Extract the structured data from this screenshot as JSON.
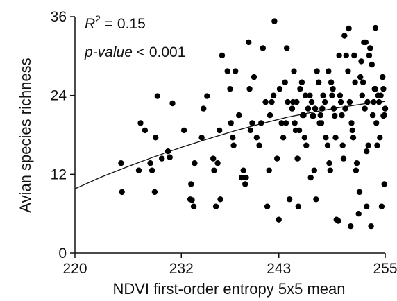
{
  "chart_data": {
    "type": "scatter",
    "title": "",
    "xlabel": "NDVI first-order entropy 5x5 mean",
    "ylabel": "Avian species richness",
    "xlim": [
      220,
      255
    ],
    "ylim": [
      0,
      36
    ],
    "xticks": [
      "220",
      "232",
      "243",
      "255"
    ],
    "yticks": [
      "0",
      "12",
      "24",
      "36"
    ],
    "annotations": {
      "r2_label": "R",
      "r2_sup": "2",
      "r2_value": " = 0.15",
      "p_label": "p-value",
      "p_value": " < 0.001"
    },
    "fit_curve": {
      "x": [
        220,
        223,
        226,
        229,
        232,
        235,
        238,
        241,
        244,
        247,
        250,
        253,
        255
      ],
      "y": [
        9.8,
        11.6,
        13.2,
        14.7,
        16.1,
        17.4,
        18.6,
        19.7,
        20.7,
        21.5,
        22.2,
        22.8,
        23.1
      ]
    },
    "points": [
      [
        225.2,
        13.7
      ],
      [
        225.3,
        9.3
      ],
      [
        227.4,
        19.8
      ],
      [
        227.2,
        12.6
      ],
      [
        227.9,
        18.7
      ],
      [
        228.5,
        13.7
      ],
      [
        228.7,
        12.6
      ],
      [
        229.0,
        9.3
      ],
      [
        229.1,
        17.6
      ],
      [
        229.3,
        23.9
      ],
      [
        229.8,
        14.4
      ],
      [
        230.5,
        15.5
      ],
      [
        230.7,
        14.6
      ],
      [
        231.0,
        22.8
      ],
      [
        232.3,
        18.7
      ],
      [
        233.1,
        10.5
      ],
      [
        233.0,
        8.2
      ],
      [
        233.2,
        8.1
      ],
      [
        233.4,
        7.1
      ],
      [
        233.5,
        13.7
      ],
      [
        234.5,
        22.0
      ],
      [
        234.9,
        23.9
      ],
      [
        234.3,
        17.6
      ],
      [
        235.6,
        14.4
      ],
      [
        235.7,
        12.6
      ],
      [
        235.9,
        7.1
      ],
      [
        236.1,
        13.7
      ],
      [
        236.3,
        18.7
      ],
      [
        236.4,
        8.2
      ],
      [
        236.6,
        30.1
      ],
      [
        237.2,
        27.7
      ],
      [
        237.5,
        25.0
      ],
      [
        237.6,
        19.8
      ],
      [
        237.8,
        17.6
      ],
      [
        237.9,
        16.4
      ],
      [
        238.1,
        27.7
      ],
      [
        238.5,
        21.0
      ],
      [
        238.8,
        11.5
      ],
      [
        239.0,
        12.6
      ],
      [
        239.2,
        10.5
      ],
      [
        239.3,
        11.5
      ],
      [
        239.6,
        32.1
      ],
      [
        239.7,
        25.0
      ],
      [
        239.8,
        18.7
      ],
      [
        240.0,
        19.8
      ],
      [
        240.2,
        26.8
      ],
      [
        240.5,
        17.6
      ],
      [
        240.8,
        16.4
      ],
      [
        241.0,
        19.8
      ],
      [
        241.2,
        31.2
      ],
      [
        241.5,
        23.0
      ],
      [
        241.7,
        7.1
      ],
      [
        241.9,
        12.6
      ],
      [
        242.0,
        21.0
      ],
      [
        242.2,
        23.0
      ],
      [
        242.4,
        24.0
      ],
      [
        242.5,
        35.3
      ],
      [
        242.8,
        14.4
      ],
      [
        243.0,
        5.1
      ],
      [
        243.1,
        25.0
      ],
      [
        243.3,
        19.8
      ],
      [
        243.5,
        17.6
      ],
      [
        243.7,
        26.0
      ],
      [
        243.9,
        31.2
      ],
      [
        244.0,
        23.0
      ],
      [
        244.2,
        8.2
      ],
      [
        244.5,
        22.0
      ],
      [
        244.7,
        27.7
      ],
      [
        244.8,
        19.8
      ],
      [
        244.9,
        18.7
      ],
      [
        245.0,
        23.0
      ],
      [
        245.1,
        14.4
      ],
      [
        245.2,
        7.1
      ],
      [
        245.3,
        18.7
      ],
      [
        245.4,
        25.0
      ],
      [
        245.6,
        26.0
      ],
      [
        245.8,
        21.0
      ],
      [
        245.9,
        17.6
      ],
      [
        246.1,
        16.4
      ],
      [
        246.3,
        22.0
      ],
      [
        246.5,
        24.0
      ],
      [
        246.6,
        11.5
      ],
      [
        246.7,
        23.0
      ],
      [
        246.8,
        20.9
      ],
      [
        247.0,
        12.6
      ],
      [
        247.1,
        22.0
      ],
      [
        247.2,
        8.2
      ],
      [
        247.3,
        27.7
      ],
      [
        247.5,
        26.0
      ],
      [
        247.7,
        21.0
      ],
      [
        247.8,
        19.8
      ],
      [
        247.9,
        22.0
      ],
      [
        248.0,
        24.0
      ],
      [
        248.2,
        23.0
      ],
      [
        248.3,
        17.6
      ],
      [
        248.5,
        16.4
      ],
      [
        248.6,
        27.7
      ],
      [
        248.7,
        13.7
      ],
      [
        248.8,
        12.6
      ],
      [
        249.0,
        24.0
      ],
      [
        249.1,
        25.0
      ],
      [
        249.2,
        22.0
      ],
      [
        249.3,
        20.9
      ],
      [
        249.4,
        17.6
      ],
      [
        249.5,
        5.1
      ],
      [
        249.7,
        4.9
      ],
      [
        249.8,
        30.1
      ],
      [
        250.0,
        23.0
      ],
      [
        250.1,
        21.0
      ],
      [
        250.2,
        16.4
      ],
      [
        250.3,
        14.4
      ],
      [
        250.5,
        22.0
      ],
      [
        250.6,
        30.1
      ],
      [
        250.8,
        27.7
      ],
      [
        251.0,
        23.0
      ],
      [
        251.2,
        19.8
      ],
      [
        251.3,
        18.7
      ],
      [
        251.4,
        17.6
      ],
      [
        251.6,
        26.0
      ],
      [
        251.7,
        12.6
      ],
      [
        251.8,
        13.7
      ],
      [
        252.0,
        6.0
      ],
      [
        252.2,
        26.8
      ],
      [
        252.3,
        29.2
      ],
      [
        252.4,
        24.0
      ],
      [
        252.6,
        32.1
      ],
      [
        252.7,
        22.0
      ],
      [
        252.9,
        15.5
      ],
      [
        253.0,
        23.0
      ],
      [
        253.2,
        30.1
      ],
      [
        253.3,
        31.2
      ],
      [
        253.5,
        28.7
      ],
      [
        253.6,
        21.0
      ],
      [
        253.8,
        25.0
      ],
      [
        254.0,
        19.8
      ],
      [
        254.1,
        16.4
      ],
      [
        254.3,
        23.0
      ],
      [
        254.4,
        17.6
      ],
      [
        254.5,
        24.0
      ],
      [
        254.6,
        7.1
      ],
      [
        254.7,
        26.8
      ],
      [
        254.8,
        25.0
      ],
      [
        254.9,
        21.0
      ],
      [
        255.0,
        22.0
      ],
      [
        253.1,
        16.4
      ],
      [
        252.1,
        9.3
      ],
      [
        251.1,
        4.1
      ],
      [
        250.9,
        34.2
      ],
      [
        249.9,
        24.0
      ],
      [
        248.9,
        26.0
      ],
      [
        247.6,
        19.8
      ],
      [
        246.9,
        20.9
      ],
      [
        246.0,
        24.0
      ],
      [
        245.7,
        21.0
      ],
      [
        244.6,
        23.0
      ],
      [
        243.8,
        19.8
      ],
      [
        252.8,
        32.1
      ],
      [
        253.9,
        25.0
      ],
      [
        254.2,
        24.0
      ],
      [
        252.5,
        26.0
      ],
      [
        251.5,
        30.1
      ],
      [
        250.4,
        33.1
      ],
      [
        252.9,
        7.1
      ],
      [
        253.4,
        4.1
      ],
      [
        253.7,
        23.0
      ],
      [
        254.9,
        10.5
      ],
      [
        254.8,
        20.9
      ],
      [
        253.9,
        34.3
      ]
    ]
  }
}
